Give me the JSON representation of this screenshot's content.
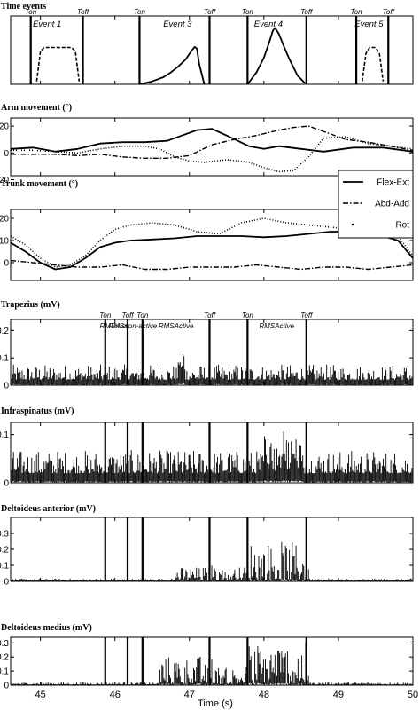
{
  "x_axis": {
    "label": "Time (s)",
    "ticks": [
      "45",
      "46",
      "47",
      "48",
      "49",
      "50"
    ],
    "range": [
      44.6,
      50
    ]
  },
  "chart_data": [
    {
      "id": "time-events",
      "type": "line",
      "title": "Time events",
      "ylim": [
        0,
        1.15
      ],
      "yticks": [],
      "markers": {
        "times": [
          44.87,
          45.57,
          46.33,
          47.27,
          47.78,
          48.57,
          49.24,
          49.67
        ],
        "labels": [
          "Ton",
          "Toff",
          "Ton",
          "Toff",
          "Ton",
          "Toff",
          "Ton",
          "Toff"
        ]
      },
      "events": [
        {
          "label": "Event 1",
          "x": 45.09
        },
        {
          "label": "Event 3",
          "x": 46.84
        },
        {
          "label": "Event 4",
          "x": 48.06
        },
        {
          "label": "Event 5",
          "x": 49.41
        }
      ],
      "series": [
        {
          "style": "dashed",
          "x": [
            44.95,
            45.0,
            45.05,
            45.42,
            45.47,
            45.52
          ],
          "y": [
            0.05,
            0.55,
            0.62,
            0.62,
            0.55,
            0.05
          ]
        },
        {
          "style": "solid",
          "x": [
            46.33,
            46.5,
            46.65,
            46.75,
            46.85,
            46.95,
            47.02,
            47.07,
            47.1,
            47.13,
            47.2
          ],
          "y": [
            0.0,
            0.05,
            0.12,
            0.2,
            0.3,
            0.42,
            0.55,
            0.63,
            0.6,
            0.35,
            0.0
          ]
        },
        {
          "style": "solid",
          "x": [
            47.78,
            47.9,
            48.0,
            48.07,
            48.12,
            48.15,
            48.2,
            48.28,
            48.35,
            48.45,
            48.55
          ],
          "y": [
            0.0,
            0.2,
            0.45,
            0.7,
            0.9,
            0.95,
            0.85,
            0.6,
            0.4,
            0.15,
            0.02
          ]
        },
        {
          "style": "dashed",
          "x": [
            49.32,
            49.37,
            49.42,
            49.5,
            49.55,
            49.6
          ],
          "y": [
            0.05,
            0.52,
            0.62,
            0.62,
            0.52,
            0.05
          ]
        }
      ]
    },
    {
      "id": "arm-movement",
      "type": "line",
      "title": "Arm movement (°)",
      "ylim": [
        -17,
        26
      ],
      "yticks": [
        -20,
        0,
        20
      ],
      "series": [
        {
          "name": "Flex-Ext",
          "style": "solid",
          "x": [
            44.6,
            44.9,
            45.2,
            45.5,
            45.8,
            46.1,
            46.4,
            46.7,
            46.9,
            47.1,
            47.3,
            47.5,
            47.8,
            48.0,
            48.2,
            48.5,
            48.8,
            49.2,
            49.6,
            50.0
          ],
          "y": [
            3,
            4,
            1,
            3,
            7,
            8,
            8,
            9,
            13,
            17,
            18,
            13,
            5,
            3,
            5,
            3,
            1,
            4,
            4,
            1
          ]
        },
        {
          "name": "Abd-Add",
          "style": "dashdot",
          "x": [
            44.6,
            44.9,
            45.2,
            45.5,
            45.8,
            46.1,
            46.4,
            46.7,
            47.0,
            47.3,
            47.6,
            47.9,
            48.2,
            48.4,
            48.6,
            48.8,
            49.1,
            49.4,
            49.7,
            50.0
          ],
          "y": [
            -1,
            -1,
            -1,
            -2,
            -1,
            -3,
            -4,
            -4,
            -2,
            6,
            10,
            13,
            17,
            19,
            20,
            16,
            10,
            8,
            5,
            2
          ]
        },
        {
          "name": "Rot",
          "style": "dotted",
          "x": [
            44.6,
            44.9,
            45.2,
            45.5,
            45.8,
            46.1,
            46.4,
            46.6,
            46.8,
            47.0,
            47.2,
            47.5,
            47.8,
            48.0,
            48.2,
            48.4,
            48.6,
            48.8,
            49.1,
            49.4,
            49.7,
            50.0
          ],
          "y": [
            2,
            2,
            1,
            0,
            3,
            5,
            5,
            3,
            -3,
            -6,
            -7,
            -5,
            -7,
            -11,
            -14,
            -13,
            -3,
            11,
            12,
            7,
            5,
            3
          ]
        }
      ]
    },
    {
      "id": "trunk-movement",
      "type": "line",
      "title": "Trunk movement (°)",
      "ylim": [
        -8,
        24
      ],
      "yticks": [
        0,
        10,
        20
      ],
      "series": [
        {
          "name": "Flex-Ext",
          "style": "solid",
          "x": [
            44.6,
            44.8,
            45.0,
            45.2,
            45.4,
            45.6,
            45.8,
            46.0,
            46.2,
            46.5,
            46.8,
            47.1,
            47.4,
            47.7,
            48.0,
            48.3,
            48.6,
            48.9,
            49.2,
            49.5,
            49.8,
            50.0
          ],
          "y": [
            9,
            5,
            0,
            -3,
            -2,
            2,
            7,
            9,
            10,
            10.5,
            11,
            12,
            12,
            12,
            11.5,
            12,
            13,
            14,
            14,
            13,
            10,
            2
          ]
        },
        {
          "name": "Abd-Add",
          "style": "dashdot",
          "x": [
            44.6,
            44.9,
            45.2,
            45.5,
            45.8,
            46.1,
            46.4,
            46.7,
            47.0,
            47.3,
            47.6,
            47.9,
            48.2,
            48.5,
            48.8,
            49.1,
            49.4,
            49.7,
            50.0
          ],
          "y": [
            1,
            0,
            -1,
            -2,
            -2,
            -1,
            -3,
            -3,
            -2,
            -2,
            -2,
            -1,
            -2,
            -3,
            -2,
            -2,
            -3,
            -2,
            -1
          ]
        },
        {
          "name": "Rot",
          "style": "dotted",
          "x": [
            44.6,
            44.8,
            45.0,
            45.2,
            45.4,
            45.6,
            45.8,
            46.0,
            46.2,
            46.5,
            46.8,
            47.1,
            47.4,
            47.7,
            48.0,
            48.3,
            48.6,
            48.9,
            49.2,
            49.5,
            49.8,
            50.0
          ],
          "y": [
            12,
            8,
            2,
            -2,
            -1,
            3,
            10,
            15,
            17,
            18,
            17,
            14,
            13,
            18,
            20,
            18,
            17,
            16,
            15,
            13,
            12,
            3
          ]
        }
      ],
      "legend": {
        "position": "right",
        "entries": [
          "Flex-Ext",
          "Abd-Add",
          "Rot"
        ]
      }
    },
    {
      "id": "trapezius",
      "type": "line",
      "title": "Trapezius (mV)",
      "ylim": [
        0,
        0.24
      ],
      "yticks": [
        0,
        0.1,
        0.2
      ],
      "emg": {
        "base": 0.02,
        "noise": 0.035,
        "burst": [
          [
            46.85,
            46.95,
            0.07
          ]
        ]
      },
      "markers": {
        "times": [
          45.87,
          46.17,
          46.37,
          47.27,
          47.78,
          48.57
        ],
        "labels": [
          "Ton",
          "Toff",
          "Ton",
          "Toff",
          "Ton",
          "Toff"
        ]
      },
      "annotations": [
        {
          "label": "RMSrest",
          "x": 45.98
        },
        {
          "label": "RMSnon-active",
          "x": 46.24
        },
        {
          "label": "RMSActive",
          "x": 46.82
        },
        {
          "label": "RMSActive",
          "x": 48.17
        }
      ]
    },
    {
      "id": "infraspinatus",
      "type": "line",
      "title": "Infraspinatus (mV)",
      "ylim": [
        0,
        0.125
      ],
      "yticks": [
        0,
        0.1
      ],
      "emg": {
        "base": 0.02,
        "noise": 0.03,
        "burst": [
          [
            48.0,
            48.5,
            0.04
          ]
        ]
      },
      "markers": {
        "times": [
          45.87,
          46.17,
          46.37,
          47.27,
          47.78,
          48.57
        ],
        "labels": []
      }
    },
    {
      "id": "deltoideus-anterior",
      "type": "line",
      "title": "Deltoideus anterior (mV)",
      "ylim": [
        0,
        0.4
      ],
      "yticks": [
        0,
        0.1,
        0.2,
        0.3
      ],
      "emg": {
        "base": 0.005,
        "noise": 0.008,
        "burst": [
          [
            46.8,
            47.3,
            0.04
          ],
          [
            47.3,
            47.8,
            0.04
          ],
          [
            47.8,
            48.6,
            0.12
          ]
        ]
      },
      "markers": {
        "times": [
          45.87,
          46.17,
          46.37,
          47.27,
          47.78,
          48.57
        ],
        "labels": []
      }
    },
    {
      "id": "deltoideus-medius",
      "type": "line",
      "title": "Deltoideus medius (mV)",
      "ylim": [
        0,
        0.34
      ],
      "yticks": [
        0,
        0.1,
        0.2,
        0.3
      ],
      "emg": {
        "base": 0.005,
        "noise": 0.01,
        "burst": [
          [
            46.6,
            47.3,
            0.1
          ],
          [
            47.3,
            47.8,
            0.06
          ],
          [
            47.8,
            48.6,
            0.15
          ]
        ]
      },
      "markers": {
        "times": [
          45.87,
          46.17,
          46.37,
          47.27,
          47.78,
          48.57
        ],
        "labels": []
      }
    }
  ]
}
